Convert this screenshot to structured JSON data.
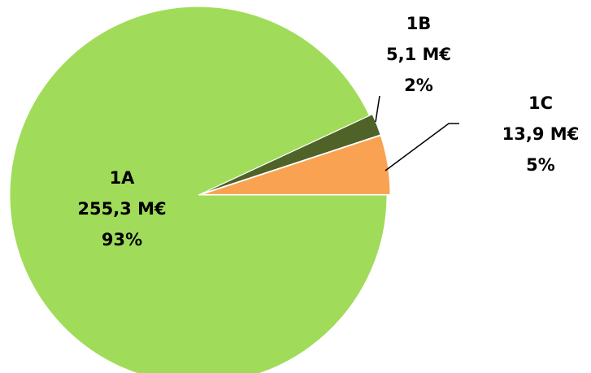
{
  "chart_data": {
    "type": "pie",
    "categories": [
      "1A",
      "1B",
      "1C"
    ],
    "values": [
      255.3,
      5.1,
      13.9
    ],
    "value_labels": [
      "255,3 M€",
      "5,1 M€",
      "13,9 M€"
    ],
    "percents": [
      93,
      2,
      5
    ],
    "percent_labels": [
      "93%",
      "2%",
      "5%"
    ],
    "colors": [
      "#a0dc5a",
      "#4f6228",
      "#f9a252"
    ]
  }
}
